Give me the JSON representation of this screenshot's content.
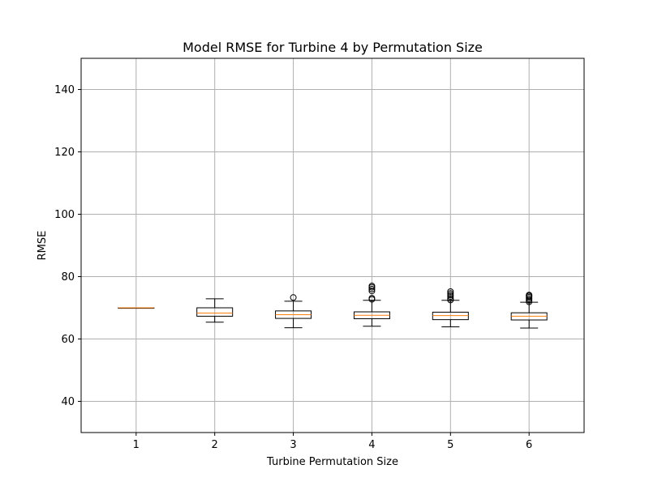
{
  "chart_data": {
    "type": "box",
    "title": "Model RMSE for Turbine 4 by Permutation Size",
    "xlabel": "Turbine Permutation Size",
    "ylabel": "RMSE",
    "ylim": [
      30,
      150
    ],
    "yticks": [
      40,
      60,
      80,
      100,
      120,
      140
    ],
    "grid": true,
    "categories": [
      "1",
      "2",
      "3",
      "4",
      "5",
      "6"
    ],
    "boxes": [
      {
        "whisker_low": 70.0,
        "q1": 70.0,
        "median": 70.0,
        "q3": 70.0,
        "whisker_high": 70.0,
        "outliers": []
      },
      {
        "whisker_low": 65.4,
        "q1": 67.3,
        "median": 68.3,
        "q3": 70.0,
        "whisker_high": 72.9,
        "outliers": []
      },
      {
        "whisker_low": 63.6,
        "q1": 66.6,
        "median": 67.8,
        "q3": 69.0,
        "whisker_high": 72.1,
        "outliers": [
          73.3
        ]
      },
      {
        "whisker_low": 64.1,
        "q1": 66.5,
        "median": 67.6,
        "q3": 68.7,
        "whisker_high": 72.4,
        "outliers": [
          72.7,
          73.1,
          75.4,
          76.0,
          76.6,
          77.0
        ]
      },
      {
        "whisker_low": 63.9,
        "q1": 66.2,
        "median": 67.5,
        "q3": 68.6,
        "whisker_high": 72.4,
        "outliers": [
          72.5,
          73.0,
          73.6,
          74.1,
          74.6,
          75.2
        ]
      },
      {
        "whisker_low": 63.5,
        "q1": 66.1,
        "median": 67.3,
        "q3": 68.4,
        "whisker_high": 71.8,
        "outliers": [
          71.9,
          72.4,
          72.9,
          73.4,
          73.8,
          74.1
        ]
      }
    ],
    "colors": {
      "box": "#000000",
      "median": "#ff7f0e",
      "grid": "#b0b0b0",
      "outlier": "#000000"
    }
  }
}
